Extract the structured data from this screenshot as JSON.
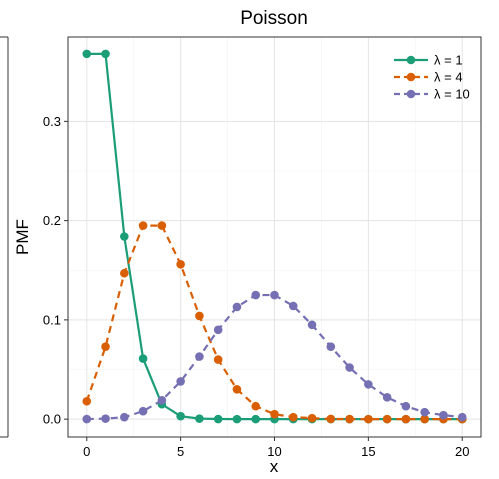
{
  "chart_data": {
    "type": "line",
    "title": "Poisson",
    "xlabel": "x",
    "ylabel": "PMF",
    "xlim": [
      -1,
      21
    ],
    "ylim": [
      -0.018,
      0.385
    ],
    "xticks": [
      0,
      5,
      10,
      15,
      20
    ],
    "xtick_labels": [
      "0",
      "5",
      "10",
      "15",
      "20"
    ],
    "yticks": [
      0.0,
      0.1,
      0.2,
      0.3
    ],
    "ytick_labels": [
      "0.0",
      "0.1",
      "0.2",
      "0.3"
    ],
    "grid": true,
    "legend_position": "top-right",
    "x": [
      0,
      1,
      2,
      3,
      4,
      5,
      6,
      7,
      8,
      9,
      10,
      11,
      12,
      13,
      14,
      15,
      16,
      17,
      18,
      19,
      20
    ],
    "series": [
      {
        "name": "λ = 1",
        "color": "#1b9e77",
        "linestyle": "solid",
        "values": [
          0.368,
          0.368,
          0.184,
          0.061,
          0.015,
          0.003,
          0.0005,
          0.0001,
          0,
          0,
          0,
          0,
          0,
          0,
          0,
          0,
          0,
          0,
          0,
          0,
          0
        ]
      },
      {
        "name": "λ = 4",
        "color": "#d95f02",
        "linestyle": "dashed",
        "values": [
          0.018,
          0.073,
          0.147,
          0.195,
          0.195,
          0.156,
          0.104,
          0.06,
          0.03,
          0.013,
          0.005,
          0.002,
          0.001,
          0.0002,
          0.0001,
          0,
          0,
          0,
          0,
          0,
          0
        ]
      },
      {
        "name": "λ = 10",
        "color": "#7570b3",
        "linestyle": "dashed",
        "values": [
          5e-05,
          0.0005,
          0.002,
          0.008,
          0.019,
          0.038,
          0.063,
          0.09,
          0.113,
          0.125,
          0.125,
          0.114,
          0.095,
          0.073,
          0.052,
          0.035,
          0.022,
          0.013,
          0.007,
          0.004,
          0.002
        ]
      }
    ]
  }
}
